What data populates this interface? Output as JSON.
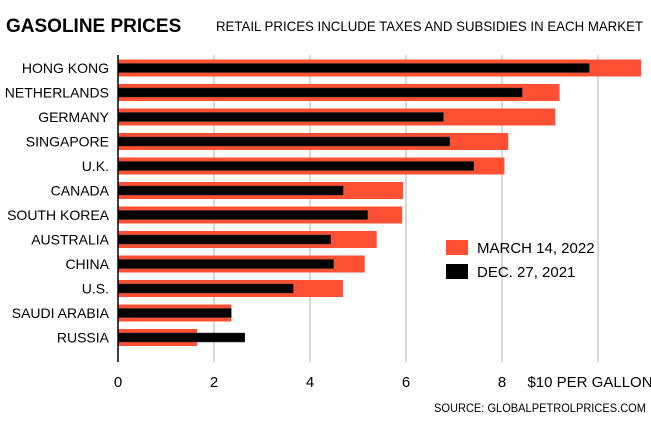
{
  "chart_data": {
    "type": "bar",
    "orientation": "horizontal",
    "title": "GASOLINE PRICES",
    "subtitle": "RETAIL PRICES INCLUDE TAXES AND SUBSIDIES IN EACH MARKET",
    "source": "SOURCE: GLOBALPETROLPRICES.COM",
    "categories": [
      "HONG KONG",
      "NETHERLANDS",
      "GERMANY",
      "SINGAPORE",
      "U.K.",
      "CANADA",
      "SOUTH KOREA",
      "AUSTRALIA",
      "CHINA",
      "U.S.",
      "SAUDI ARABIA",
      "RUSSIA"
    ],
    "series": [
      {
        "name": "MARCH 14, 2022",
        "color": "#ff5033",
        "values": [
          10.9,
          9.2,
          9.11,
          8.13,
          8.05,
          5.94,
          5.92,
          5.39,
          5.14,
          4.69,
          2.36,
          1.65
        ]
      },
      {
        "name": "DEC. 27, 2021",
        "color": "#000000",
        "values": [
          9.82,
          8.42,
          6.78,
          6.91,
          7.41,
          4.69,
          5.2,
          4.43,
          4.49,
          3.65,
          2.36,
          2.64
        ]
      }
    ],
    "xlim": [
      0,
      11
    ],
    "ticks": [
      0,
      2,
      4,
      6,
      8,
      10
    ],
    "tick_labels": [
      "0",
      "2",
      "4",
      "6",
      "8",
      "$10 PER GALLON"
    ],
    "grid": true,
    "legend_position": "right"
  }
}
